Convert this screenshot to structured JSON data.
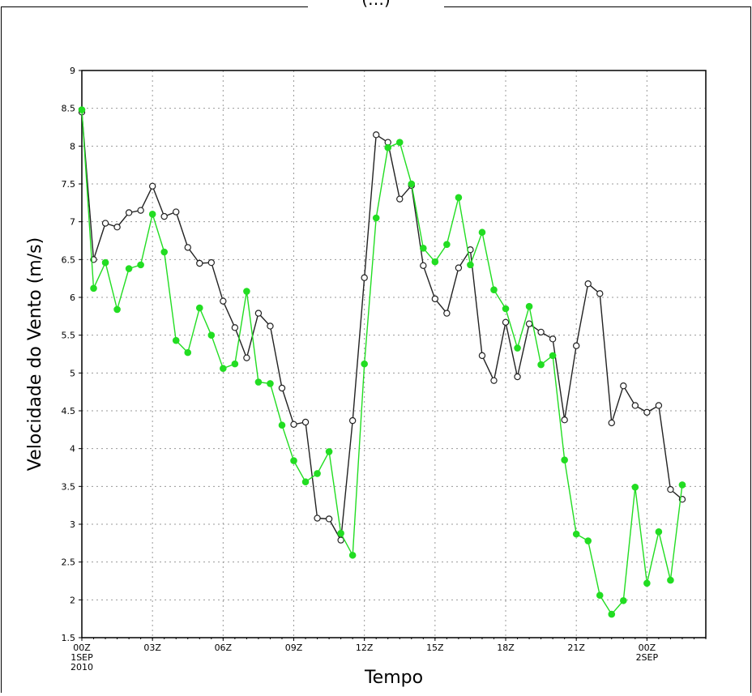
{
  "chart_data": {
    "type": "line",
    "title": "(…)",
    "xlabel": "Tempo",
    "ylabel": "Velocidade do Vento (m/s)",
    "ylim": [
      1.5,
      9
    ],
    "yticks": [
      "1.5",
      "2",
      "2.5",
      "3",
      "3.5",
      "4",
      "4.5",
      "5",
      "5.5",
      "6",
      "6.5",
      "7",
      "7.5",
      "8",
      "8.5",
      "9"
    ],
    "xlim": [
      0,
      26.5
    ],
    "xticks": [
      {
        "x": 0,
        "lines": [
          "00Z",
          "1SEP",
          "2010"
        ]
      },
      {
        "x": 3,
        "lines": [
          "03Z"
        ]
      },
      {
        "x": 6,
        "lines": [
          "06Z"
        ]
      },
      {
        "x": 9,
        "lines": [
          "09Z"
        ]
      },
      {
        "x": 12,
        "lines": [
          "12Z"
        ]
      },
      {
        "x": 15,
        "lines": [
          "15Z"
        ]
      },
      {
        "x": 18,
        "lines": [
          "18Z"
        ]
      },
      {
        "x": 21,
        "lines": [
          "21Z"
        ]
      },
      {
        "x": 24,
        "lines": [
          "00Z",
          "2SEP"
        ]
      }
    ],
    "grid": true,
    "series": [
      {
        "color": "#222222",
        "marker": "open-circle",
        "x": [
          0,
          0.5,
          1,
          1.5,
          2,
          2.5,
          3,
          3.5,
          4,
          4.5,
          5,
          5.5,
          6,
          6.5,
          7,
          7.5,
          8,
          8.5,
          9,
          9.5,
          10,
          10.5,
          11,
          11.5,
          12,
          12.5,
          13,
          13.5,
          14,
          14.5,
          15,
          15.5,
          16,
          16.5,
          17,
          17.5,
          18,
          18.5,
          19,
          19.5,
          20,
          20.5,
          21,
          21.5,
          22,
          22.5,
          23,
          23.5,
          24,
          24.5,
          25,
          25.5
        ],
        "y": [
          8.45,
          6.5,
          6.98,
          6.93,
          7.12,
          7.15,
          7.47,
          7.07,
          7.13,
          6.66,
          6.45,
          6.46,
          5.95,
          5.6,
          5.2,
          5.79,
          5.62,
          4.8,
          4.32,
          4.35,
          3.08,
          3.07,
          2.79,
          4.37,
          6.26,
          8.15,
          8.05,
          7.3,
          7.48,
          6.42,
          5.98,
          5.79,
          6.39,
          6.63,
          5.23,
          4.9,
          5.67,
          4.95,
          5.65,
          5.54,
          5.45,
          4.38,
          5.36,
          6.18,
          6.05,
          4.34,
          4.83,
          4.57,
          4.48,
          4.57,
          3.46,
          3.33
        ]
      },
      {
        "color": "#22dd22",
        "marker": "filled-circle",
        "x": [
          0,
          0.5,
          1,
          1.5,
          2,
          2.5,
          3,
          3.5,
          4,
          4.5,
          5,
          5.5,
          6,
          6.5,
          7,
          7.5,
          8,
          8.5,
          9,
          9.5,
          10,
          10.5,
          11,
          11.5,
          12,
          12.5,
          13,
          13.5,
          14,
          14.5,
          15,
          15.5,
          16,
          16.5,
          17,
          17.5,
          18,
          18.5,
          19,
          19.5,
          20,
          20.5,
          21,
          21.5,
          22,
          22.5,
          23,
          23.5,
          24,
          24.5,
          25,
          25.5
        ],
        "y": [
          8.48,
          6.12,
          6.46,
          5.84,
          6.38,
          6.43,
          7.1,
          6.6,
          5.43,
          5.27,
          5.86,
          5.5,
          5.06,
          5.12,
          6.08,
          4.88,
          4.86,
          4.31,
          3.84,
          3.56,
          3.67,
          3.96,
          2.88,
          2.59,
          5.12,
          7.05,
          7.98,
          8.05,
          7.5,
          6.65,
          6.47,
          6.7,
          7.32,
          6.43,
          6.86,
          6.1,
          5.85,
          5.33,
          5.88,
          5.11,
          5.23,
          3.85,
          2.87,
          2.78,
          2.06,
          1.81,
          1.99,
          3.49,
          2.22,
          2.9,
          2.26,
          3.52
        ]
      }
    ]
  }
}
